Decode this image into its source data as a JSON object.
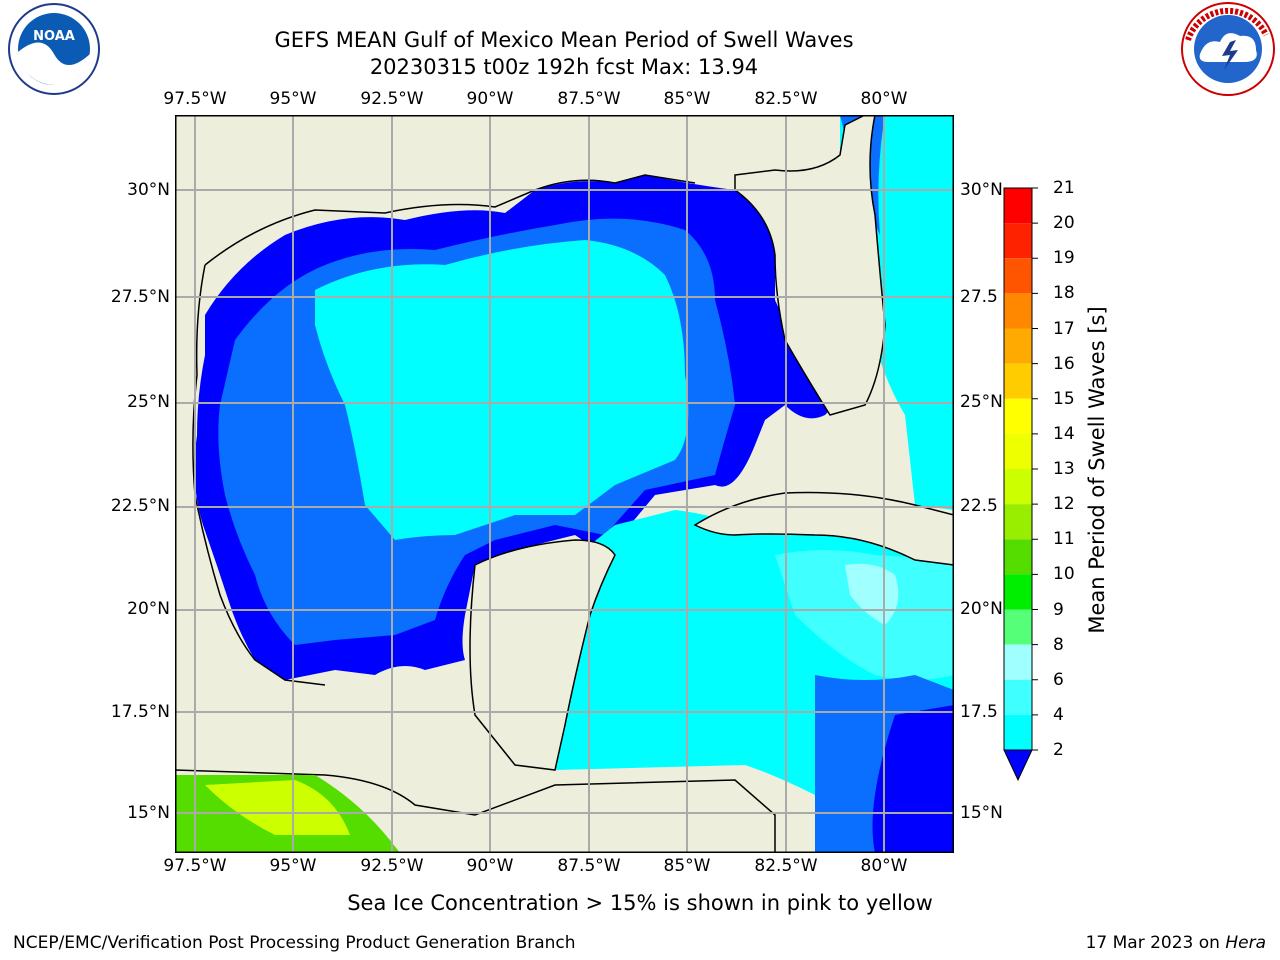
{
  "title_line1": "GEFS MEAN Gulf of Mexico Mean Period of Swell Waves",
  "title_line2": "20230315 t00z 192h fcst   Max: 13.94",
  "logos": {
    "left": "NOAA",
    "right": "NATIONAL WEATHER SERVICE"
  },
  "lon_ticks": [
    "97.5°W",
    "95°W",
    "92.5°W",
    "90°W",
    "87.5°W",
    "85°W",
    "82.5°W",
    "80°W"
  ],
  "lat_ticks_left": [
    "30°N",
    "27.5°N",
    "25°N",
    "22.5°N",
    "20°N",
    "17.5°N",
    "15°N"
  ],
  "lat_ticks_right": [
    "30°N",
    "27.5",
    "25°N",
    "22.5",
    "20°N",
    "17.5",
    "15°N"
  ],
  "colorbar": {
    "label": "Mean Period of Swell Waves [s]",
    "ticks": [
      "2",
      "4",
      "6",
      "8",
      "9",
      "10",
      "11",
      "12",
      "13",
      "14",
      "15",
      "16",
      "17",
      "18",
      "19",
      "20",
      "21"
    ],
    "colors": [
      "#0000ff",
      "#0a6eff",
      "#00ffff",
      "#40ffff",
      "#a0ffff",
      "#55ff77",
      "#00ee00",
      "#55dd00",
      "#99ee00",
      "#ccff00",
      "#eeff00",
      "#ffff00",
      "#ffcc00",
      "#ffaa00",
      "#ff8800",
      "#ff5500",
      "#ff2200",
      "#ff0000"
    ],
    "extend_color": "#0000ff"
  },
  "map_colors": {
    "land": "#eeeedc",
    "ice_green": "#55dd00",
    "ice_yellow": "#ccff00"
  },
  "subtitle": "Sea Ice Concentration > 15% is shown in pink to yellow",
  "footer_left": "NCEP/EMC/Verification Post Processing Product Generation Branch",
  "footer_right_prefix": "17 Mar 2023 on ",
  "footer_right_host": "Hera"
}
